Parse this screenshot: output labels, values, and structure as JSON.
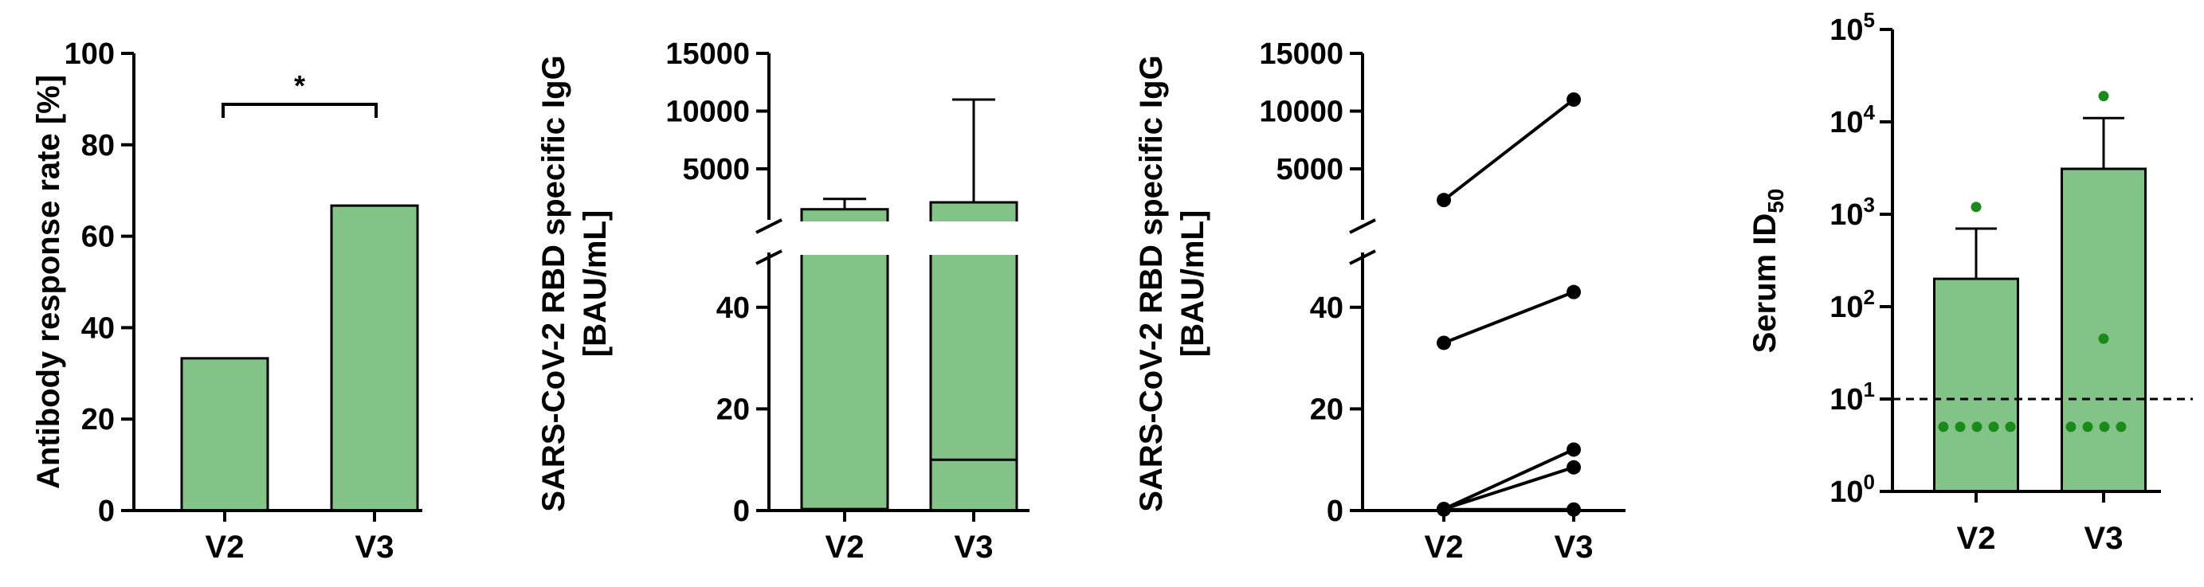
{
  "colors": {
    "bar_fill": "#83c387",
    "dot": "#1a8a1a",
    "axis": "#000000"
  },
  "chart_data": [
    {
      "type": "bar",
      "ylabel": "Antibody response rate [%]",
      "categories": [
        "V2",
        "V3"
      ],
      "values": [
        33.3,
        66.7
      ],
      "ylim": [
        0,
        100
      ],
      "yticks": [
        "0",
        "20",
        "40",
        "60",
        "80",
        "100"
      ],
      "significance": {
        "between": [
          "V2",
          "V3"
        ],
        "label": "*"
      }
    },
    {
      "type": "bar",
      "ylabel": [
        "SARS-CoV-2 RBD specific IgG",
        "[BAU/mL]"
      ],
      "categories": [
        "V2",
        "V3"
      ],
      "axis_break": {
        "lower": [
          0,
          50
        ],
        "upper": [
          1000,
          15000
        ]
      },
      "yticks_lower": [
        "0",
        "20",
        "40"
      ],
      "yticks_upper": [
        "5000",
        "10000",
        "15000"
      ],
      "mean": [
        1500,
        2100
      ],
      "error_upper": [
        2400,
        11000
      ],
      "median": [
        0.3,
        10
      ]
    },
    {
      "type": "line",
      "ylabel": [
        "SARS-CoV-2 RBD specific IgG",
        "[BAU/mL]"
      ],
      "categories": [
        "V2",
        "V3"
      ],
      "axis_break": {
        "lower": [
          0,
          50
        ],
        "upper": [
          1000,
          15000
        ]
      },
      "yticks_lower": [
        "0",
        "20",
        "40"
      ],
      "yticks_upper": [
        "5000",
        "10000",
        "15000"
      ],
      "series": [
        {
          "values": [
            2300,
            11000
          ]
        },
        {
          "values": [
            33,
            43
          ]
        },
        {
          "values": [
            0.3,
            12
          ]
        },
        {
          "values": [
            0.3,
            8.5
          ]
        },
        {
          "values": [
            0.2,
            0.2
          ]
        }
      ]
    },
    {
      "type": "bar",
      "ylabel_main": "Serum ID",
      "ylabel_sub": "50",
      "categories": [
        "V2",
        "V3"
      ],
      "yscale": "log",
      "ylim": [
        1,
        100000
      ],
      "yticks": [
        {
          "base": "10",
          "exp": "0"
        },
        {
          "base": "10",
          "exp": "1"
        },
        {
          "base": "10",
          "exp": "2"
        },
        {
          "base": "10",
          "exp": "3"
        },
        {
          "base": "10",
          "exp": "4"
        },
        {
          "base": "10",
          "exp": "5"
        }
      ],
      "geo_mean": [
        200,
        3100
      ],
      "error_upper": [
        700,
        11000
      ],
      "threshold": 10,
      "points": [
        [
          1200,
          5,
          5,
          5,
          5,
          5
        ],
        [
          19000,
          45,
          5,
          5,
          5,
          5
        ]
      ]
    }
  ]
}
